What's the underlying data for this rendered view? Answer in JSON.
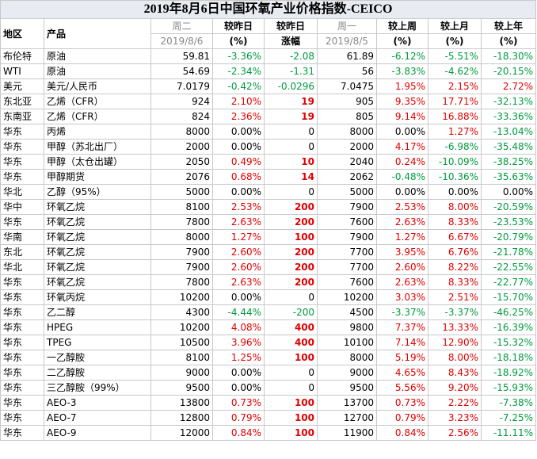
{
  "title": "2019年8月6日中国环氧产业价格指数-CEICO",
  "header": {
    "row1": [
      "地区",
      "产品",
      "周二",
      "较昨日",
      "较昨日",
      "周一",
      "较上周",
      "较上月",
      "较上年"
    ],
    "row2": [
      "2019/8/6",
      "(%)",
      "涨幅",
      "2019/8/5",
      "(%)",
      "(%)",
      "(%)"
    ]
  },
  "table": {
    "rows": [
      [
        "布伦特",
        "原油",
        "59.81",
        "-3.36%",
        "-2.08",
        "61.89",
        "-6.12%",
        "-5.51%",
        "-18.30%"
      ],
      [
        "WTI",
        "原油",
        "54.69",
        "-2.34%",
        "-1.31",
        "56",
        "-3.83%",
        "-4.62%",
        "-20.15%"
      ],
      [
        "美元",
        "美元/人民币",
        "7.0179",
        "-0.42%",
        "-0.0296",
        "7.0475",
        "1.95%",
        "2.15%",
        "2.72%"
      ],
      [
        "东北亚",
        "乙烯（CFR）",
        "924",
        "2.10%",
        "19",
        "905",
        "9.35%",
        "17.71%",
        "-32.13%"
      ],
      [
        "东南亚",
        "乙烯（CFR）",
        "824",
        "2.36%",
        "19",
        "805",
        "9.14%",
        "16.88%",
        "-33.36%"
      ],
      [
        "华东",
        "丙烯",
        "8000",
        "0.00%",
        "0",
        "8000",
        "0.00%",
        "1.27%",
        "-13.04%"
      ],
      [
        "华东",
        "甲醇（苏北出厂）",
        "2000",
        "0.00%",
        "0",
        "2000",
        "4.17%",
        "-6.98%",
        "-35.48%"
      ],
      [
        "华东",
        "甲醇（太仓出罐）",
        "2050",
        "0.49%",
        "10",
        "2040",
        "0.24%",
        "-10.09%",
        "-38.25%"
      ],
      [
        "华东",
        "甲醇期货",
        "2076",
        "0.68%",
        "14",
        "2062",
        "-0.48%",
        "-10.36%",
        "-35.63%"
      ],
      [
        "华北",
        "乙醇（95%）",
        "5000",
        "0.00%",
        "0",
        "5000",
        "0.00%",
        "0.00%",
        "0.00%"
      ],
      [
        "华中",
        "环氧乙烷",
        "8100",
        "2.53%",
        "200",
        "7900",
        "2.53%",
        "8.00%",
        "-20.59%"
      ],
      [
        "华东",
        "环氧乙烷",
        "7800",
        "2.63%",
        "200",
        "7600",
        "2.63%",
        "8.33%",
        "-23.53%"
      ],
      [
        "华南",
        "环氧乙烷",
        "8000",
        "1.27%",
        "100",
        "7900",
        "1.27%",
        "6.67%",
        "-20.79%"
      ],
      [
        "东北",
        "环氧乙烷",
        "7900",
        "2.60%",
        "200",
        "7700",
        "3.95%",
        "6.76%",
        "-21.78%"
      ],
      [
        "华北",
        "环氧乙烷",
        "7900",
        "2.60%",
        "200",
        "7700",
        "2.60%",
        "8.22%",
        "-22.55%"
      ],
      [
        "华东",
        "环氧乙烷",
        "7800",
        "2.63%",
        "200",
        "7600",
        "2.63%",
        "8.33%",
        "-22.77%"
      ],
      [
        "华东",
        "环氧丙烷",
        "10200",
        "0.00%",
        "0",
        "10200",
        "3.03%",
        "2.51%",
        "-15.70%"
      ],
      [
        "华东",
        "乙二醇",
        "4300",
        "-4.44%",
        "-200",
        "4500",
        "-3.37%",
        "-3.37%",
        "-46.25%"
      ],
      [
        "华东",
        "HPEG",
        "10200",
        "4.08%",
        "400",
        "9800",
        "7.37%",
        "13.33%",
        "-16.39%"
      ],
      [
        "华东",
        "TPEG",
        "10500",
        "3.96%",
        "400",
        "10100",
        "7.14%",
        "12.90%",
        "-15.32%"
      ],
      [
        "华东",
        "一乙醇胺",
        "8100",
        "1.25%",
        "100",
        "8000",
        "5.19%",
        "8.00%",
        "-18.18%"
      ],
      [
        "华东",
        "二乙醇胺",
        "9000",
        "0.00%",
        "0",
        "9000",
        "4.65%",
        "8.43%",
        "-18.92%"
      ],
      [
        "华东",
        "三乙醇胺（99%）",
        "9500",
        "0.00%",
        "0",
        "9500",
        "5.56%",
        "9.20%",
        "-15.93%"
      ],
      [
        "华东",
        "AEO-3",
        "13800",
        "0.73%",
        "100",
        "13700",
        "0.73%",
        "2.22%",
        "-7.38%"
      ],
      [
        "华东",
        "AEO-7",
        "12800",
        "0.79%",
        "100",
        "12700",
        "0.79%",
        "3.23%",
        "-7.25%"
      ],
      [
        "华东",
        "AEO-9",
        "12000",
        "0.84%",
        "100",
        "11900",
        "0.84%",
        "2.56%",
        "-11.11%"
      ]
    ]
  }
}
